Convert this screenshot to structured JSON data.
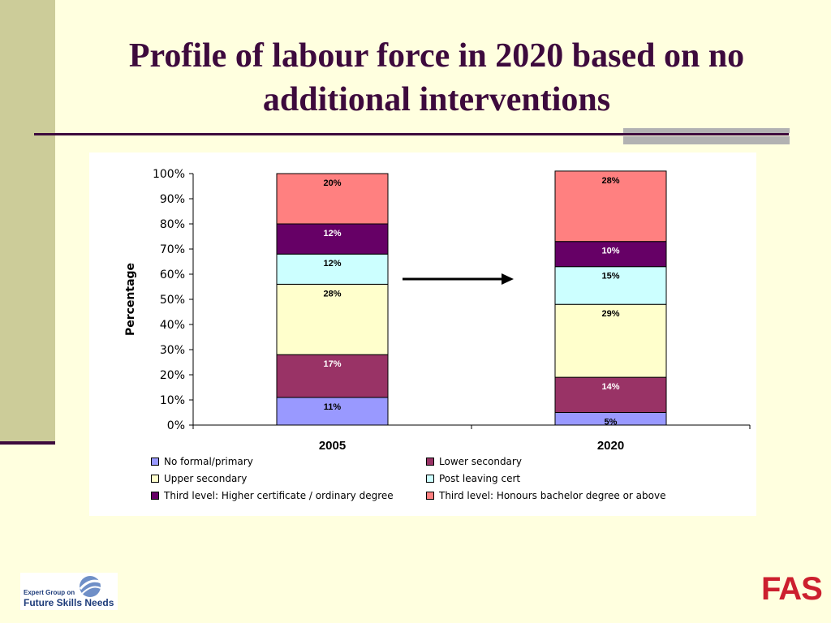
{
  "slide": {
    "title": "Profile of labour force in 2020 based on no additional interventions"
  },
  "logos": {
    "left_line1": "Expert Group on",
    "left_line2": "Future Skills Needs",
    "right_text": "FAS"
  },
  "colors": {
    "background": "#ffffdf",
    "title": "#3d0a3d",
    "No formal/primary": "#9999ff",
    "Lower secondary": "#993366",
    "Upper secondary": "#ffffcc",
    "Post leaving cert": "#ccffff",
    "Third level: Higher certificate / ordinary degree": "#660066",
    "Third level: Honours bachelor degree or above": "#ff8080"
  },
  "chart_data": {
    "type": "bar",
    "stacked": true,
    "categories": [
      "2005",
      "2020"
    ],
    "ylabel": "Percentage",
    "xlabel": "",
    "ylim": [
      0,
      100
    ],
    "yticks": [
      "0%",
      "10%",
      "20%",
      "30%",
      "40%",
      "50%",
      "60%",
      "70%",
      "80%",
      "90%",
      "100%"
    ],
    "legend_position": "bottom",
    "annotation": "arrow from 2005 to 2020",
    "series": [
      {
        "name": "No formal/primary",
        "values": [
          11,
          5
        ],
        "labels": [
          "11%",
          "5%"
        ]
      },
      {
        "name": "Lower secondary",
        "values": [
          17,
          14
        ],
        "labels": [
          "17%",
          "14%"
        ]
      },
      {
        "name": "Upper secondary",
        "values": [
          28,
          29
        ],
        "labels": [
          "28%",
          "29%"
        ]
      },
      {
        "name": "Post leaving cert",
        "values": [
          12,
          15
        ],
        "labels": [
          "12%",
          "15%"
        ]
      },
      {
        "name": "Third level: Higher certificate / ordinary degree",
        "values": [
          12,
          10
        ],
        "labels": [
          "12%",
          "10%"
        ]
      },
      {
        "name": "Third level: Honours bachelor degree or above",
        "values": [
          20,
          28
        ],
        "labels": [
          "20%",
          "28%"
        ]
      }
    ]
  }
}
